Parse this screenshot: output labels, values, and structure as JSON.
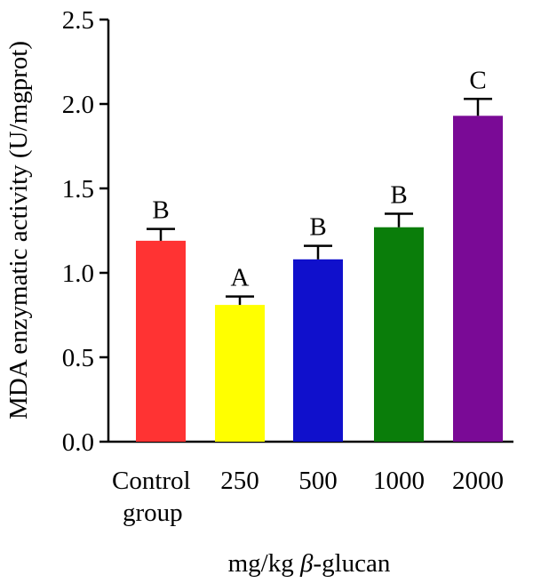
{
  "chart_data": {
    "type": "bar",
    "categories": [
      {
        "lines": [
          "Control",
          "group"
        ]
      },
      {
        "lines": [
          "250"
        ]
      },
      {
        "lines": [
          "500"
        ]
      },
      {
        "lines": [
          "1000"
        ]
      },
      {
        "lines": [
          "2000"
        ]
      }
    ],
    "values": [
      1.19,
      0.81,
      1.08,
      1.27,
      1.93
    ],
    "errors": [
      0.07,
      0.05,
      0.08,
      0.08,
      0.1
    ],
    "significance": [
      "B",
      "A",
      "B",
      "B",
      "C"
    ],
    "colors": [
      "#ff3333",
      "#ffff00",
      "#1010cc",
      "#0a7d0a",
      "#7a0a96"
    ],
    "ylabel": "MDA enzymatic activity (U/mgprot)",
    "xlabel_prefix": "mg/kg ",
    "xlabel_greek": "β",
    "xlabel_suffix": "-glucan",
    "ylim": [
      0,
      2.5
    ],
    "yticks": [
      "0.0",
      "0.5",
      "1.0",
      "1.5",
      "2.0",
      "2.5"
    ],
    "grid": false
  }
}
